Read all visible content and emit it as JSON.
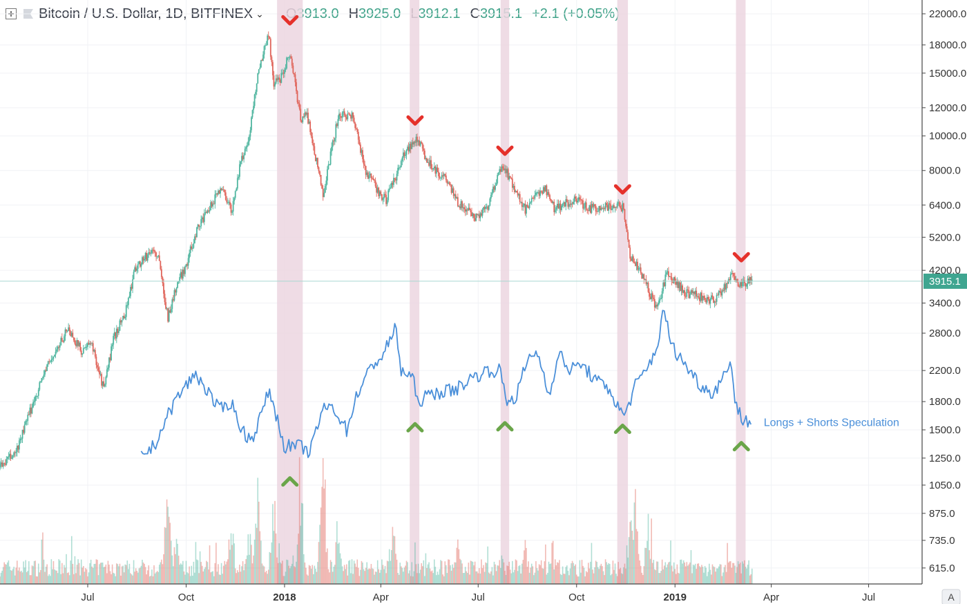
{
  "header": {
    "symbol_title": "Bitcoin / U.S. Dollar, 1D, BITFINEX",
    "ohlc": [
      {
        "key": "O",
        "value": "3913.0"
      },
      {
        "key": "H",
        "value": "3925.0"
      },
      {
        "key": "L",
        "value": "3912.1"
      },
      {
        "key": "C",
        "value": "3915.1"
      }
    ],
    "change": "+2.1 (+0.05%)"
  },
  "colors": {
    "up": "#4fb59f",
    "down": "#e0655b",
    "spec_line": "#4a8fd9",
    "highlight": "#ecd6e1",
    "top_marker": "#e5312b",
    "bottom_marker": "#6aa549",
    "price_line": "#a8d8d0",
    "axis_text": "#333333"
  },
  "chart_data": {
    "type": "line",
    "scale": "log",
    "ylim": [
      580,
      23000
    ],
    "y_ticks": [
      "22000.0",
      "18000.0",
      "15000.0",
      "12000.0",
      "10000.0",
      "8000.0",
      "6400.0",
      "5200.0",
      "4200.0",
      "3400.0",
      "2800.0",
      "2200.0",
      "1800.0",
      "1500.0",
      "1250.0",
      "1050.0",
      "875.0",
      "735.0",
      "615.0"
    ],
    "x_ticks": [
      "Jul",
      "Oct",
      "2018",
      "Apr",
      "Jul",
      "Oct",
      "2019",
      "Apr",
      "Jul"
    ],
    "x_tick_dates": [
      "2017-07-01",
      "2017-10-01",
      "2018-01-01",
      "2018-04-01",
      "2018-07-01",
      "2018-10-01",
      "2019-01-01",
      "2019-04-01",
      "2019-07-01"
    ],
    "x_range": [
      "2017-04-10",
      "2019-08-20"
    ],
    "last_price_label": "3915.1",
    "last_price": 3915.1,
    "price_series": {
      "name": "",
      "points": [
        [
          "2017-04-10",
          1180
        ],
        [
          "2017-04-25",
          1300
        ],
        [
          "2017-05-10",
          1750
        ],
        [
          "2017-05-22",
          2200
        ],
        [
          "2017-06-05",
          2600
        ],
        [
          "2017-06-12",
          2900
        ],
        [
          "2017-06-25",
          2500
        ],
        [
          "2017-07-05",
          2600
        ],
        [
          "2017-07-16",
          1950
        ],
        [
          "2017-07-25",
          2700
        ],
        [
          "2017-08-05",
          3200
        ],
        [
          "2017-08-15",
          4300
        ],
        [
          "2017-08-31",
          4800
        ],
        [
          "2017-09-05",
          4550
        ],
        [
          "2017-09-14",
          3100
        ],
        [
          "2017-09-22",
          3800
        ],
        [
          "2017-10-01",
          4350
        ],
        [
          "2017-10-12",
          5600
        ],
        [
          "2017-10-20",
          6000
        ],
        [
          "2017-11-02",
          7200
        ],
        [
          "2017-11-10",
          6550
        ],
        [
          "2017-11-12",
          6000
        ],
        [
          "2017-11-20",
          8200
        ],
        [
          "2017-11-29",
          10000
        ],
        [
          "2017-12-07",
          15000
        ],
        [
          "2017-12-12",
          17000
        ],
        [
          "2017-12-17",
          19500
        ],
        [
          "2017-12-22",
          14000
        ],
        [
          "2017-12-28",
          14500
        ],
        [
          "2018-01-06",
          17200
        ],
        [
          "2018-01-16",
          11200
        ],
        [
          "2018-01-22",
          11500
        ],
        [
          "2018-02-06",
          6900
        ],
        [
          "2018-02-20",
          11300
        ],
        [
          "2018-03-05",
          11500
        ],
        [
          "2018-03-18",
          8000
        ],
        [
          "2018-04-01",
          6800
        ],
        [
          "2018-04-06",
          6600
        ],
        [
          "2018-04-25",
          9200
        ],
        [
          "2018-05-05",
          9800
        ],
        [
          "2018-05-15",
          8500
        ],
        [
          "2018-06-01",
          7500
        ],
        [
          "2018-06-12",
          6500
        ],
        [
          "2018-06-29",
          5900
        ],
        [
          "2018-07-10",
          6400
        ],
        [
          "2018-07-24",
          8300
        ],
        [
          "2018-08-05",
          7000
        ],
        [
          "2018-08-14",
          6200
        ],
        [
          "2018-09-01",
          7200
        ],
        [
          "2018-09-10",
          6300
        ],
        [
          "2018-10-01",
          6600
        ],
        [
          "2018-10-12",
          6250
        ],
        [
          "2018-11-05",
          6400
        ],
        [
          "2018-11-14",
          6300
        ],
        [
          "2018-11-20",
          4600
        ],
        [
          "2018-12-01",
          4100
        ],
        [
          "2018-12-15",
          3250
        ],
        [
          "2018-12-24",
          4100
        ],
        [
          "2019-01-10",
          3650
        ],
        [
          "2019-02-07",
          3450
        ],
        [
          "2019-02-24",
          4100
        ],
        [
          "2019-03-01",
          3850
        ],
        [
          "2019-03-14",
          3915
        ]
      ]
    },
    "speculation_series": {
      "name": "Longs + Shorts Speculation",
      "points": [
        [
          "2017-08-20",
          1270
        ],
        [
          "2017-09-01",
          1350
        ],
        [
          "2017-09-10",
          1550
        ],
        [
          "2017-09-20",
          1800
        ],
        [
          "2017-10-01",
          2000
        ],
        [
          "2017-10-10",
          2150
        ],
        [
          "2017-10-20",
          1950
        ],
        [
          "2017-11-01",
          1700
        ],
        [
          "2017-11-12",
          1800
        ],
        [
          "2017-11-22",
          1500
        ],
        [
          "2017-12-01",
          1400
        ],
        [
          "2017-12-10",
          1650
        ],
        [
          "2017-12-18",
          1950
        ],
        [
          "2017-12-24",
          1650
        ],
        [
          "2018-01-01",
          1350
        ],
        [
          "2018-01-15",
          1350
        ],
        [
          "2018-01-25",
          1300
        ],
        [
          "2018-02-05",
          1700
        ],
        [
          "2018-02-15",
          1750
        ],
        [
          "2018-02-28",
          1500
        ],
        [
          "2018-03-10",
          1900
        ],
        [
          "2018-03-25",
          2300
        ],
        [
          "2018-04-02",
          2400
        ],
        [
          "2018-04-10",
          2700
        ],
        [
          "2018-04-15",
          2900
        ],
        [
          "2018-04-20",
          2200
        ],
        [
          "2018-05-01",
          2100
        ],
        [
          "2018-05-05",
          1800
        ],
        [
          "2018-05-20",
          1900
        ],
        [
          "2018-06-10",
          1950
        ],
        [
          "2018-06-25",
          2100
        ],
        [
          "2018-07-10",
          2200
        ],
        [
          "2018-07-22",
          2200
        ],
        [
          "2018-07-27",
          1800
        ],
        [
          "2018-08-05",
          1850
        ],
        [
          "2018-08-15",
          2300
        ],
        [
          "2018-08-25",
          2500
        ],
        [
          "2018-09-05",
          1900
        ],
        [
          "2018-09-15",
          2450
        ],
        [
          "2018-09-25",
          2200
        ],
        [
          "2018-10-05",
          2300
        ],
        [
          "2018-10-20",
          2050
        ],
        [
          "2018-11-01",
          1950
        ],
        [
          "2018-11-10",
          1700
        ],
        [
          "2018-11-15",
          1650
        ],
        [
          "2018-11-25",
          2000
        ],
        [
          "2018-12-05",
          2200
        ],
        [
          "2018-12-15",
          2550
        ],
        [
          "2018-12-22",
          3300
        ],
        [
          "2018-12-28",
          2600
        ],
        [
          "2019-01-10",
          2300
        ],
        [
          "2019-01-25",
          2000
        ],
        [
          "2019-02-05",
          1900
        ],
        [
          "2019-02-15",
          2100
        ],
        [
          "2019-02-22",
          2400
        ],
        [
          "2019-02-26",
          1800
        ],
        [
          "2019-03-05",
          1600
        ],
        [
          "2019-03-14",
          1580
        ]
      ]
    },
    "annotations": {
      "highlight_ranges": [
        [
          "2017-12-25",
          "2018-01-18"
        ],
        [
          "2018-04-28",
          "2018-05-07"
        ],
        [
          "2018-07-22",
          "2018-07-30"
        ],
        [
          "2018-11-08",
          "2018-11-18"
        ],
        [
          "2019-02-27",
          "2019-03-08"
        ]
      ],
      "top_markers": [
        [
          "2018-01-06",
          21000
        ],
        [
          "2018-05-03",
          11000
        ],
        [
          "2018-07-26",
          9050
        ],
        [
          "2018-11-13",
          7050
        ],
        [
          "2019-03-04",
          4550
        ]
      ],
      "bottom_markers": [
        [
          "2018-01-06",
          1075
        ],
        [
          "2018-05-03",
          1525
        ],
        [
          "2018-07-26",
          1535
        ],
        [
          "2018-11-13",
          1510
        ],
        [
          "2019-03-04",
          1350
        ]
      ]
    },
    "volume": {
      "ylim": [
        0,
        100
      ],
      "spikes": [
        [
          "2017-09-14",
          80
        ],
        [
          "2017-09-22",
          50
        ],
        [
          "2017-11-12",
          65
        ],
        [
          "2017-11-29",
          45
        ],
        [
          "2017-12-07",
          95
        ],
        [
          "2017-12-22",
          85
        ],
        [
          "2018-01-16",
          90
        ],
        [
          "2018-02-06",
          100
        ],
        [
          "2018-02-20",
          40
        ],
        [
          "2018-04-12",
          55
        ],
        [
          "2018-06-12",
          40
        ],
        [
          "2018-08-14",
          35
        ],
        [
          "2018-11-20",
          60
        ],
        [
          "2018-11-25",
          80
        ],
        [
          "2018-12-07",
          55
        ],
        [
          "2019-02-24",
          25
        ]
      ]
    }
  }
}
